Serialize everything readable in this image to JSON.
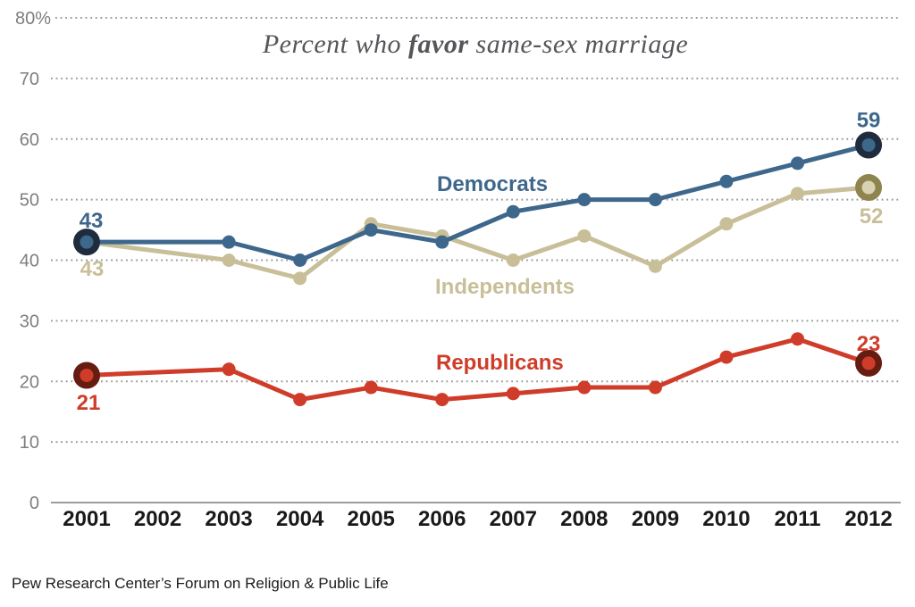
{
  "title": {
    "prefix": "Percent who ",
    "emphasis": "favor",
    "suffix": " same-sex marriage"
  },
  "footer": "Pew Research Center’s Forum on Religion & Public Life",
  "colors": {
    "grid": "#97999c",
    "axis": "#9b9da0",
    "title": "#55565a",
    "ytick": "#7c7e81",
    "xtick": "#19191a",
    "democrats_blue": "#3e678c",
    "democrats_dark_ring": "#1e2c3e",
    "independents_tan": "#c8bf99",
    "independents_dark_ring": "#8d844e",
    "independents_endpoint_center": "#d8d2b2",
    "republicans_red": "#cf3d2a",
    "republicans_dark_ring": "#671c12"
  },
  "chart_data": {
    "type": "line",
    "title": "Percent who favor same-sex marriage",
    "xlabel": "",
    "ylabel": "",
    "ylim": [
      0,
      80
    ],
    "grid": "dotted horizontal gridlines every 10",
    "legend_position": "inline labels next to lines",
    "x": [
      2001,
      2003,
      2004,
      2005,
      2006,
      2007,
      2008,
      2009,
      2010,
      2011,
      2012
    ],
    "x_axis_labels": [
      "2001",
      "2002",
      "2003",
      "2004",
      "2005",
      "2006",
      "2007",
      "2008",
      "2009",
      "2010",
      "2011",
      "2012"
    ],
    "yticks": [
      {
        "value": 0,
        "label": "0"
      },
      {
        "value": 10,
        "label": "10"
      },
      {
        "value": 20,
        "label": "20"
      },
      {
        "value": 30,
        "label": "30"
      },
      {
        "value": 40,
        "label": "40"
      },
      {
        "value": 50,
        "label": "50"
      },
      {
        "value": 60,
        "label": "60"
      },
      {
        "value": 70,
        "label": "70"
      },
      {
        "value": 80,
        "label": "80%"
      }
    ],
    "series": [
      {
        "name": "Democrats",
        "color": "#3e678c",
        "ring_color": "#1e2c3e",
        "endpoint_fill": "#3e678c",
        "start_ring": true,
        "start_label": "43",
        "end_label": "59",
        "values": [
          43,
          43,
          40,
          45,
          43,
          48,
          50,
          50,
          53,
          56,
          59
        ]
      },
      {
        "name": "Independents",
        "color": "#c8bf99",
        "ring_color": "#8d844e",
        "endpoint_fill": "#d8d2b2",
        "start_ring": false,
        "start_label": "43",
        "end_label": "52",
        "values": [
          43,
          40,
          37,
          46,
          44,
          40,
          44,
          39,
          46,
          51,
          52
        ]
      },
      {
        "name": "Republicans",
        "color": "#cf3d2a",
        "ring_color": "#671c12",
        "endpoint_fill": "#cf3d2a",
        "start_ring": true,
        "start_label": "21",
        "end_label": "23",
        "values": [
          21,
          22,
          17,
          19,
          17,
          18,
          19,
          19,
          24,
          27,
          23
        ]
      }
    ]
  }
}
